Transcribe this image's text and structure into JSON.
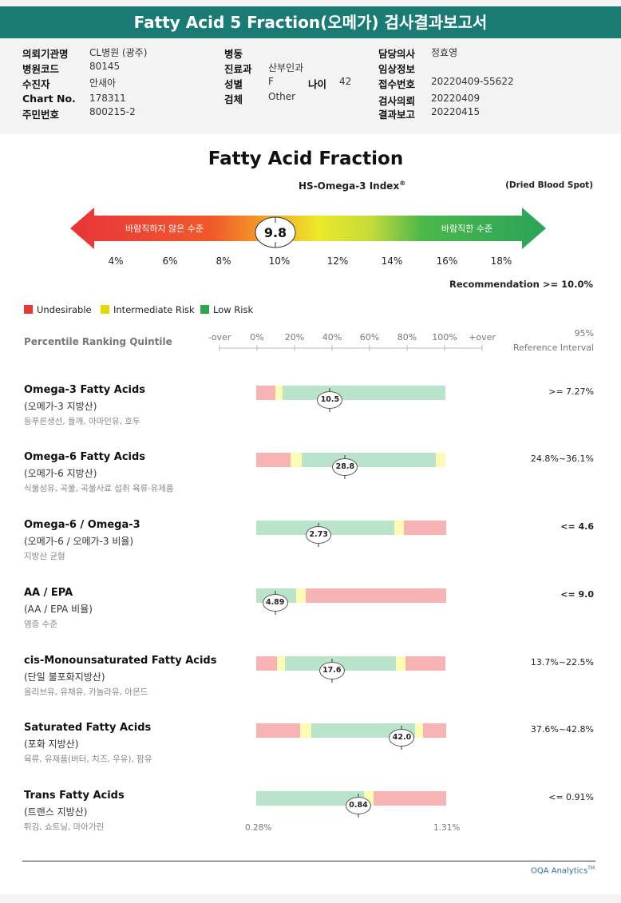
{
  "report_title": "Fatty Acid 5 Fraction(오메가) 검사결과보고서",
  "patient_info": [
    {
      "label": "의뢰기관명",
      "value": "CL병원 (광주)"
    },
    {
      "label": "병원코드",
      "value": "80145"
    },
    {
      "label": "수진자",
      "value": "안새아"
    },
    {
      "label": "Chart No.",
      "value": "178311"
    },
    {
      "label": "주민번호",
      "value": "800215-2"
    },
    {
      "label": "병동",
      "value": ""
    },
    {
      "label": "진료과",
      "value": "산부인과"
    },
    {
      "label": "성별",
      "value": "F"
    },
    {
      "label": "나이",
      "value": "42"
    },
    {
      "label": "검체",
      "value": "Other"
    },
    {
      "label": "담당의사",
      "value": "정효영"
    },
    {
      "label": "임상정보",
      "value": ""
    },
    {
      "label": "접수번호",
      "value": "20220409-55622"
    },
    {
      "label": "검사의뢰",
      "value": "20220409"
    },
    {
      "label": "결과보고",
      "value": "20220415"
    }
  ],
  "section_title": "Fatty Acid Fraction",
  "index": {
    "name": "HS-Omega-3 Index",
    "trademark": "®",
    "sample_note": "(Dried Blood Spot)",
    "value": "9.8",
    "left_label": "바람직하지 않은 수준",
    "right_label": "바람직한 수준",
    "ticks": [
      "4%",
      "6%",
      "8%",
      "10%",
      "12%",
      "14%",
      "16%",
      "18%"
    ],
    "recommendation": "Recommendation  >= 10.0%"
  },
  "legend": [
    {
      "label": "Undesirable",
      "color": "#e53935"
    },
    {
      "label": "Intermediate Risk",
      "color": "#e6d800"
    },
    {
      "label": "Low Risk",
      "color": "#2ea44f"
    }
  ],
  "quintile": {
    "label": "Percentile Ranking Quintile",
    "ticks": [
      "-over",
      "0%",
      "20%",
      "40%",
      "60%",
      "80%",
      "100%",
      "+over"
    ],
    "ref_head_1": "95%",
    "ref_head_2": "Reference Interval"
  },
  "rows": [
    {
      "title": "Omega-3 Fatty Acids",
      "sub": "(오메가-3 지방산)",
      "desc": "등푸른생선, 들깨, 아마인유, 호두",
      "value": "10.5",
      "ref": ">= 7.27%",
      "segments": [
        {
          "c": "red",
          "w": 0.1
        },
        {
          "c": "yellow",
          "w": 0.04
        },
        {
          "c": "green",
          "w": 0.86
        }
      ],
      "marker": 0.39,
      "ref_bold": false
    },
    {
      "title": "Omega-6 Fatty Acids",
      "sub": "(오메가-6 지방산)",
      "desc": "식물성유, 곡물, 곡물사료 섭취 육류·유제품",
      "value": "28.8",
      "ref": "24.8%~36.1%",
      "segments": [
        {
          "c": "red",
          "w": 0.18
        },
        {
          "c": "yellow",
          "w": 0.06
        },
        {
          "c": "green",
          "w": 0.71
        },
        {
          "c": "yellow",
          "w": 0.05
        }
      ],
      "marker": 0.47,
      "ref_bold": false
    },
    {
      "title": "Omega-6 / Omega-3",
      "sub": "(오메가-6 / 오메가-3 비율)",
      "desc": "지방산 균형",
      "value": "2.73",
      "ref": "<= 4.6",
      "segments": [
        {
          "c": "green",
          "w": 0.73
        },
        {
          "c": "yellow",
          "w": 0.05
        },
        {
          "c": "red",
          "w": 0.22
        }
      ],
      "marker": 0.33,
      "ref_bold": true
    },
    {
      "title": "AA / EPA",
      "sub": "(AA / EPA 비율)",
      "desc": "염증 수준",
      "value": "4.89",
      "ref": "<= 9.0",
      "segments": [
        {
          "c": "green",
          "w": 0.21
        },
        {
          "c": "yellow",
          "w": 0.05
        },
        {
          "c": "red",
          "w": 0.74
        }
      ],
      "marker": 0.1,
      "ref_bold": true
    },
    {
      "title": "cis-Monounsaturated Fatty Acids",
      "sub": "(단일 불포화지방산)",
      "desc": "올리브유, 유채유, 카놀라유, 아몬드",
      "value": "17.6",
      "ref": "13.7%~22.5%",
      "segments": [
        {
          "c": "red",
          "w": 0.11
        },
        {
          "c": "yellow",
          "w": 0.04
        },
        {
          "c": "green",
          "w": 0.59
        },
        {
          "c": "yellow",
          "w": 0.05
        },
        {
          "c": "red",
          "w": 0.21
        }
      ],
      "marker": 0.4,
      "ref_bold": false
    },
    {
      "title": "Saturated Fatty Acids",
      "sub": "(포화 지방산)",
      "desc": "육류, 유제품(버터, 치즈, 우유), 팜유",
      "value": "42.0",
      "ref": "37.6%~42.8%",
      "segments": [
        {
          "c": "red",
          "w": 0.23
        },
        {
          "c": "yellow",
          "w": 0.06
        },
        {
          "c": "green",
          "w": 0.55
        },
        {
          "c": "yellow",
          "w": 0.04
        },
        {
          "c": "red",
          "w": 0.12
        }
      ],
      "marker": 0.77,
      "ref_bold": false
    },
    {
      "title": "Trans Fatty Acids",
      "sub": "(트랜스 지방산)",
      "desc": "튀김, 쇼트닝, 마아가린",
      "value": "0.84",
      "ref": "<= 0.91%",
      "segments": [
        {
          "c": "green",
          "w": 0.57
        },
        {
          "c": "yellow",
          "w": 0.05
        },
        {
          "c": "red",
          "w": 0.38
        }
      ],
      "marker": 0.54,
      "ref_bold": false
    }
  ],
  "axis_min": "0.28%",
  "axis_max": "1.31%",
  "footer_brand": "OQA Analytics",
  "footer_tm": "TM",
  "colors": {
    "red": "#f8b4b4",
    "yellow": "#fdfcb4",
    "green": "#b9e4c9",
    "header": "#1a7b74"
  }
}
